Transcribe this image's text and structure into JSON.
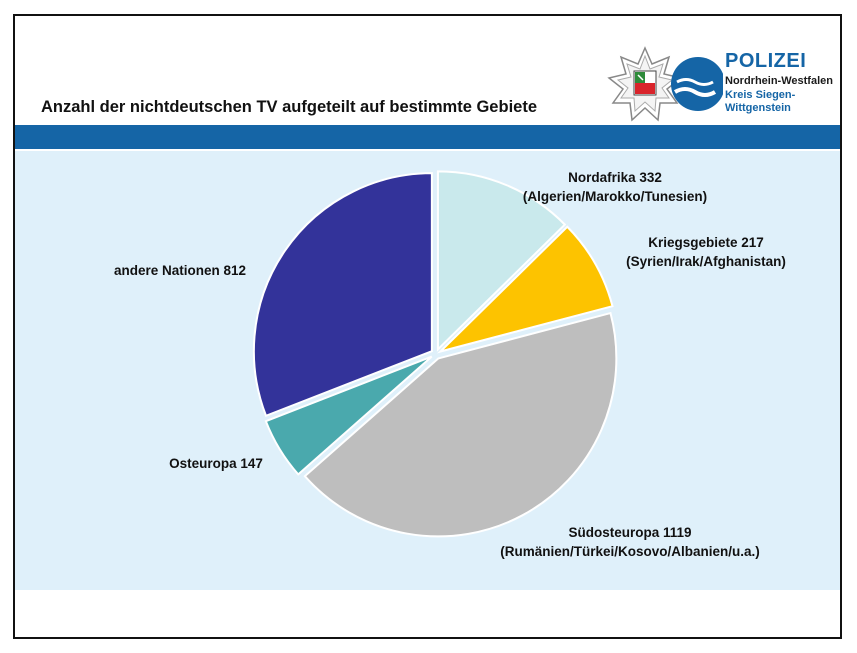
{
  "title": "Anzahl der nichtdeutschen TV aufgeteilt auf bestimmte Gebiete",
  "logo": {
    "word": "POLIZEI",
    "line1": "Nordrhein-Westfalen",
    "line2": "Kreis Siegen-",
    "line3": "Wittgenstein"
  },
  "colors": {
    "blue_bar": "#1565a6",
    "panel": "#dff0fa"
  },
  "chart_data": {
    "type": "pie",
    "title": "",
    "slices": [
      {
        "label": "Nordafrika",
        "value": 332,
        "detail": "(Algerien/Marokko/Tunesien)",
        "color": "#c9e9ec"
      },
      {
        "label": "Kriegsgebiete",
        "value": 217,
        "detail": "(Syrien/Irak/Afghanistan)",
        "color": "#fdc300"
      },
      {
        "label": "Südosteuropa",
        "value": 1119,
        "detail": "(Rumänien/Türkei/Kosovo/Albanien/u.a.)",
        "color": "#bebebe"
      },
      {
        "label": "Osteuropa",
        "value": 147,
        "detail": "",
        "color": "#4aa9ad"
      },
      {
        "label": "andere Nationen",
        "value": 812,
        "detail": "",
        "color": "#33339a"
      }
    ],
    "label_texts": [
      [
        "Nordafrika 332",
        "(Algerien/Marokko/Tunesien)"
      ],
      [
        "Kriegsgebiete 217",
        "(Syrien/Irak/Afghanistan)"
      ],
      [
        "Südosteuropa 1119",
        "(Rumänien/Türkei/Kosovo/Albanien/u.a.)"
      ],
      [
        "Osteuropa 147"
      ],
      [
        "andere Nationen 812"
      ]
    ],
    "exploded": true,
    "start": "12 o'clock, clockwise"
  }
}
